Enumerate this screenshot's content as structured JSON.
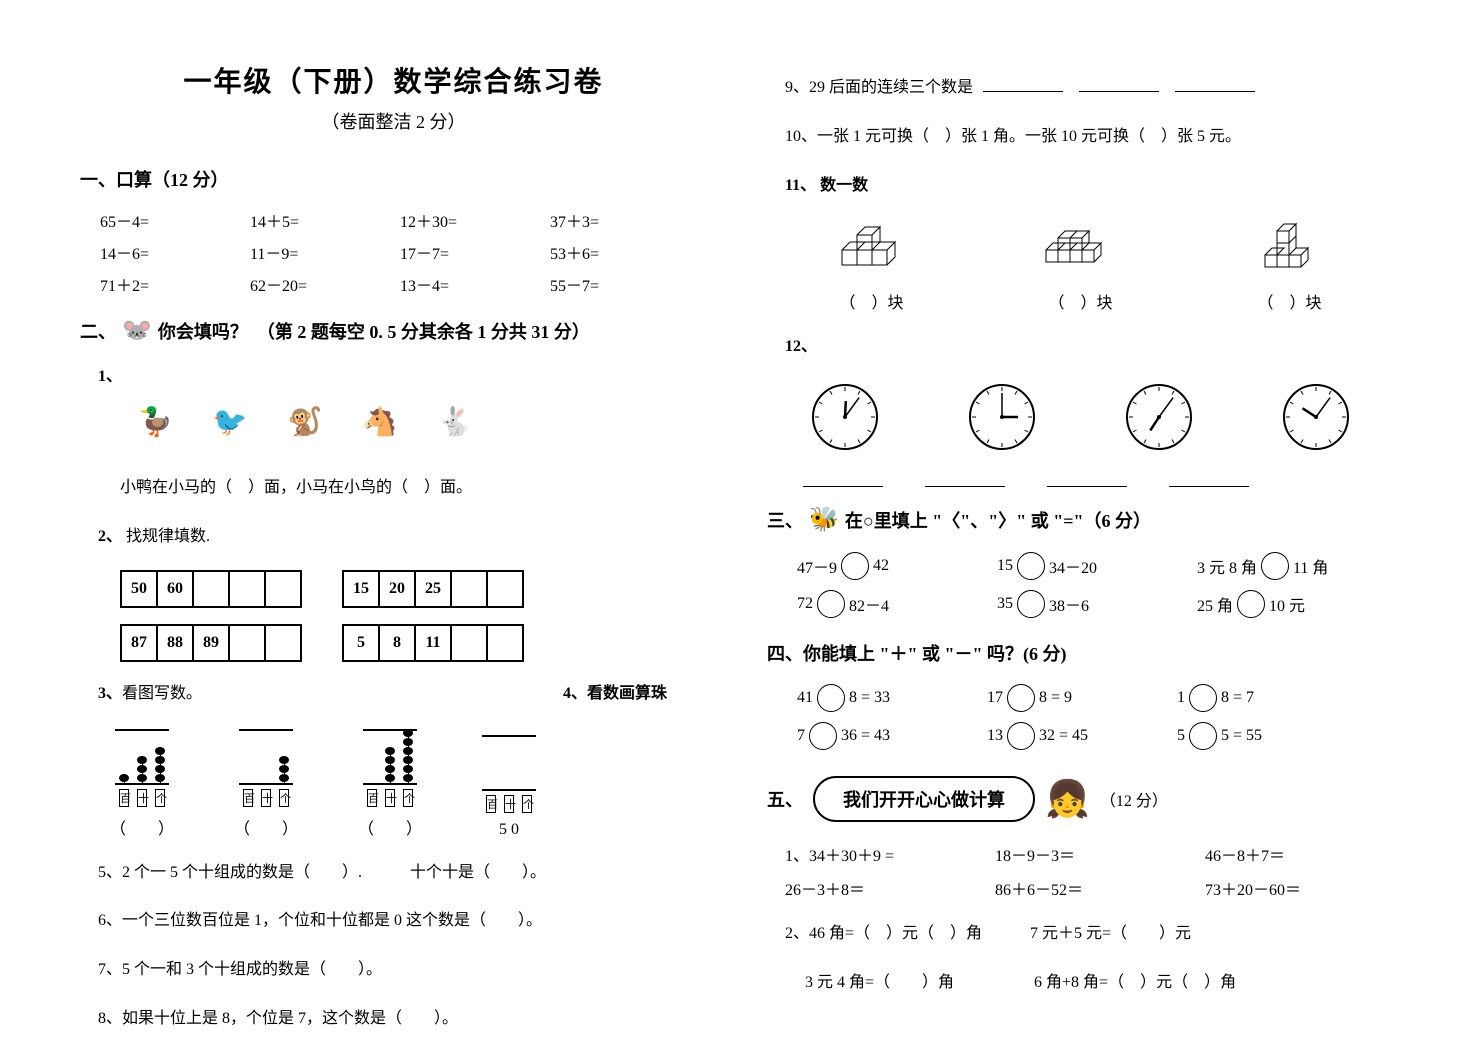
{
  "title": "一年级（下册）数学综合练习卷",
  "subtitle": "（卷面整洁 2 分）",
  "sec1": {
    "head": "一、口算（12 分）",
    "rows": [
      [
        "65－4=",
        "14＋5=",
        "12＋30=",
        "37＋3="
      ],
      [
        "14－6=",
        "11－9=",
        "17－7=",
        "53＋6="
      ],
      [
        "71＋2=",
        "62－20=",
        "13－4=",
        "55－7="
      ]
    ]
  },
  "sec2": {
    "head_prefix": "二、",
    "head_text": "你会填吗？　（第 2 题每空 0. 5 分其余各 1 分共 31 分）",
    "q1": {
      "num": "1、",
      "animals": [
        "🦆",
        "🐦",
        "🐒",
        "🐴",
        "🐇"
      ],
      "line": "小鸭在小马的（　）面，小马在小鸟的（　）面。"
    },
    "q2": {
      "num": "2、",
      "label": "找规律填数.",
      "tables_left": [
        [
          "50",
          "60",
          "",
          "",
          ""
        ],
        [
          "87",
          "88",
          "89",
          "",
          ""
        ]
      ],
      "tables_right": [
        [
          "15",
          "20",
          "25",
          "",
          ""
        ],
        [
          "5",
          "8",
          "11",
          "",
          ""
        ]
      ]
    },
    "q3": {
      "num": "3、",
      "label": "看图写数。",
      "q4_label": "4、看数画算珠",
      "abacus_labels": [
        "百",
        "十",
        "个"
      ],
      "beads": [
        [
          1,
          3,
          4
        ],
        [
          0,
          0,
          3
        ],
        [
          0,
          4,
          6
        ]
      ],
      "q4_value": "5 0",
      "paren": "（　　）"
    },
    "q5": "5、2 个一 5 个十组成的数是（　　）.　　　十个十是（　　）。",
    "q6": "6、一个三位数百位是 1，个位和十位都是 0 这个数是（　　）。",
    "q7": "7、5 个一和 3 个十组成的数是（　　）。",
    "q8": "8、如果十位上是 8，个位是 7，这个数是（　　）。",
    "q9": "9、29 后面的连续三个数是",
    "q10": "10、一张 1 元可换（　）张 1 角。一张 10 元可换（　）张 5 元。",
    "q11": {
      "num": "11、",
      "label": "数一数",
      "block_label": "（　）块"
    },
    "q12_num": "12、"
  },
  "sec3": {
    "head_prefix": "三、",
    "head_text": "在○里填上 \"〈\"、\"〉\" 或 \"=\"（6 分）",
    "rows": [
      [
        {
          "l": "47－9",
          "r": "42"
        },
        {
          "l": "15",
          "r": "34－20"
        },
        {
          "l": "3 元 8 角",
          "r": "11 角"
        }
      ],
      [
        {
          "l": "72",
          "r": "82－4"
        },
        {
          "l": "35",
          "r": "38－6"
        },
        {
          "l": "25 角",
          "r": "10 元"
        }
      ]
    ]
  },
  "sec4": {
    "head": "四、你能填上 \"＋\" 或 \"－\" 吗？(6 分)",
    "rows": [
      [
        {
          "l": "41",
          "m": "8",
          "r": "= 33"
        },
        {
          "l": "17",
          "m": "8",
          "r": "= 9"
        },
        {
          "l": "1",
          "m": "8",
          "r": "= 7"
        }
      ],
      [
        {
          "l": "7",
          "m": "36",
          "r": "= 43"
        },
        {
          "l": "13",
          "m": "32",
          "r": "= 45"
        },
        {
          "l": "5",
          "m": "5",
          "r": "= 55"
        }
      ]
    ]
  },
  "sec5": {
    "head_prefix": "五、",
    "bubble": "我们开开心心做计算",
    "score": "（12 分）",
    "q1_num": "1、",
    "q1_rows": [
      [
        "34＋30＋9 =",
        "18－9－3＝",
        "46－8＋7＝"
      ],
      [
        "26－3＋8＝",
        "86＋6－52＝",
        "73＋20－60＝"
      ]
    ],
    "q2_lines": [
      "2、46 角=（　）元（　）角　　　7 元＋5 元=（　　）元",
      "　 3 元 4 角=（　　）角　　　　　6 角+8 角=（　）元（　）角"
    ]
  },
  "colors": {
    "bg": "#ffffff",
    "text": "#000000",
    "border": "#000000"
  }
}
